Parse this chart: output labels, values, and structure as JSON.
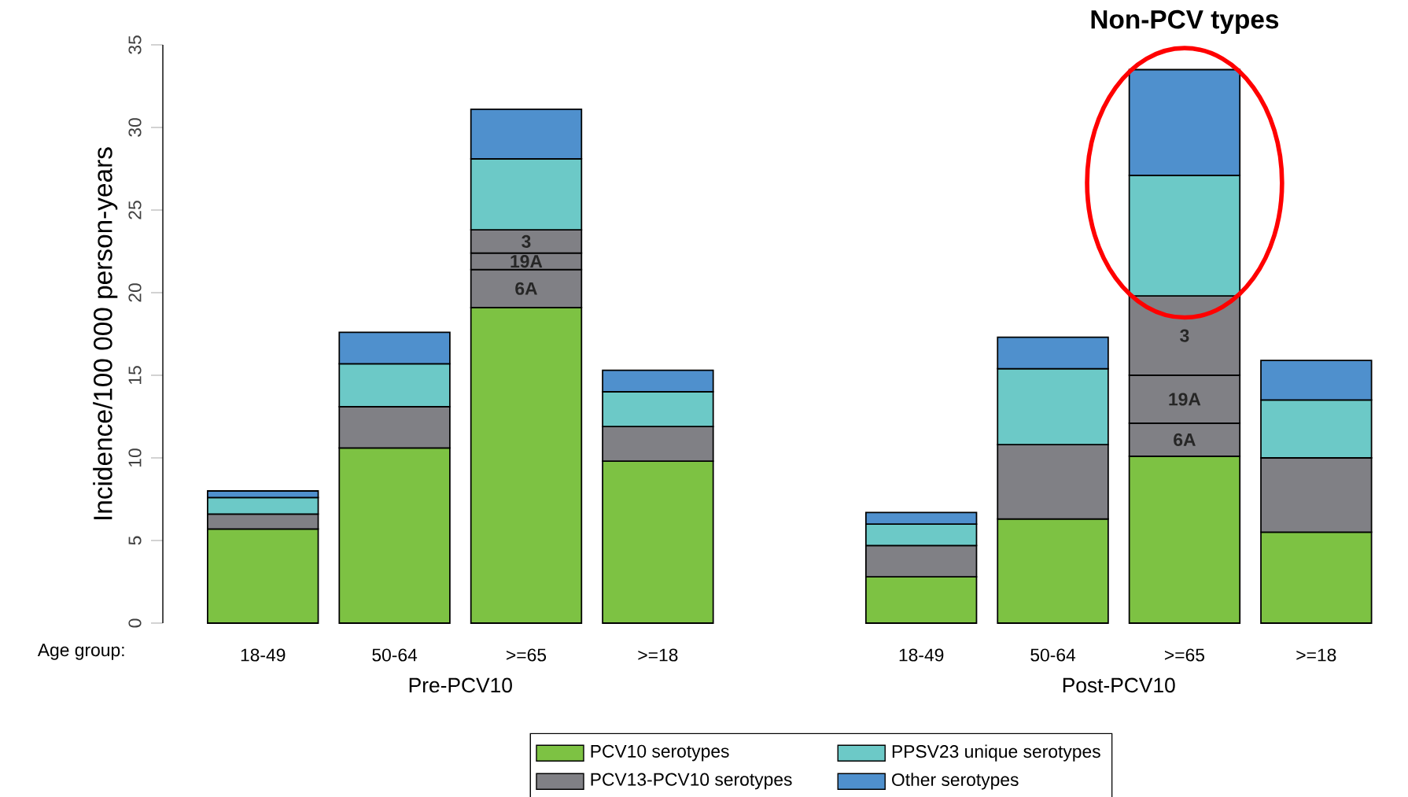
{
  "chart_data": {
    "type": "bar",
    "stacked": true,
    "xlabel": "Age group:",
    "ylabel": "Incidence/100 000 person-years",
    "categories": [
      "18-49",
      "50-64",
      ">=65",
      ">=18",
      null,
      "18-49",
      "50-64",
      ">=65",
      ">=18"
    ],
    "series": [
      {
        "name": "PCV10 serotypes",
        "color": "#7dc243",
        "values": [
          5.7,
          10.6,
          19.1,
          9.8,
          null,
          2.8,
          6.3,
          10.1,
          5.5
        ]
      },
      {
        "name": "PCV13-PCV10 serotypes",
        "color": "#808085",
        "values": [
          0.9,
          2.5,
          null,
          2.1,
          null,
          1.9,
          4.5,
          null,
          4.5
        ]
      },
      {
        "name": "6A",
        "color": "#808085",
        "values": [
          null,
          null,
          2.3,
          null,
          null,
          null,
          null,
          2.0,
          null
        ]
      },
      {
        "name": "19A",
        "color": "#808085",
        "values": [
          null,
          null,
          1.0,
          null,
          null,
          null,
          null,
          2.9,
          null
        ]
      },
      {
        "name": "3",
        "color": "#808085",
        "values": [
          null,
          null,
          1.4,
          null,
          null,
          null,
          null,
          4.8,
          null
        ]
      },
      {
        "name": "PPSV23 unique serotypes",
        "color": "#6cc9c7",
        "values": [
          1.0,
          2.6,
          4.3,
          2.1,
          null,
          1.3,
          4.6,
          7.3,
          3.5
        ]
      },
      {
        "name": "Other serotypes",
        "color": "#4f90cd",
        "values": [
          0.4,
          1.9,
          3.0,
          1.3,
          null,
          0.7,
          1.9,
          6.4,
          2.4
        ]
      }
    ],
    "ylim": [
      0,
      35
    ],
    "yticks": [
      0,
      5,
      10,
      15,
      20,
      25,
      30,
      35
    ],
    "legend": "bottom",
    "annotations": [
      "Non-PCV types",
      "Pre-PCV10",
      "Post-PCV10"
    ]
  }
}
